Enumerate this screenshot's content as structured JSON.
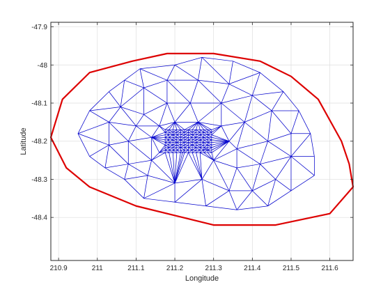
{
  "chart_data": {
    "type": "scatter",
    "title": "",
    "xlabel": "Longitude",
    "ylabel": "Latitude",
    "xlim": [
      210.88,
      211.66
    ],
    "ylim": [
      -48.513,
      -47.888
    ],
    "xticks": [
      210.9,
      211,
      211.1,
      211.2,
      211.3,
      211.4,
      211.5,
      211.6
    ],
    "xtick_labels": [
      "210.9",
      "211",
      "211.1",
      "211.2",
      "211.3",
      "211.4",
      "211.5",
      "211.6"
    ],
    "yticks": [
      -47.9,
      -48,
      -48.1,
      -48.2,
      -48.3,
      -48.4
    ],
    "ytick_labels": [
      "-47.9",
      "-48",
      "-48.1",
      "-48.2",
      "-48.3",
      "-48.4"
    ],
    "grid": true,
    "colors": {
      "boundary": "#dd0000",
      "mesh": "#0000cc",
      "axes": "#262626",
      "grid": "#dedede"
    },
    "series": [
      {
        "kind": "boundary",
        "color": "#dd0000",
        "closed": true,
        "points": [
          [
            210.88,
            -48.19
          ],
          [
            210.91,
            -48.09
          ],
          [
            210.98,
            -48.02
          ],
          [
            211.09,
            -47.99
          ],
          [
            211.18,
            -47.97
          ],
          [
            211.3,
            -47.97
          ],
          [
            211.42,
            -47.99
          ],
          [
            211.5,
            -48.03
          ],
          [
            211.57,
            -48.09
          ],
          [
            211.63,
            -48.2
          ],
          [
            211.65,
            -48.26
          ],
          [
            211.66,
            -48.32
          ],
          [
            211.6,
            -48.39
          ],
          [
            211.46,
            -48.42
          ],
          [
            211.3,
            -48.42
          ],
          [
            211.1,
            -48.37
          ],
          [
            210.98,
            -48.32
          ],
          [
            210.92,
            -48.27
          ]
        ]
      },
      {
        "kind": "mesh-outer",
        "color": "#0000cc",
        "points": [
          [
            210.95,
            -48.18
          ],
          [
            210.98,
            -48.12
          ],
          [
            211.03,
            -48.07
          ],
          [
            211.07,
            -48.04
          ],
          [
            211.11,
            -48.01
          ],
          [
            211.2,
            -48
          ],
          [
            211.27,
            -47.98
          ],
          [
            211.35,
            -47.99
          ],
          [
            211.42,
            -48.02
          ],
          [
            211.48,
            -48.07
          ],
          [
            211.52,
            -48.12
          ],
          [
            211.55,
            -48.18
          ],
          [
            211.56,
            -48.24
          ],
          [
            211.56,
            -48.29
          ],
          [
            211.5,
            -48.33
          ],
          [
            211.44,
            -48.37
          ],
          [
            211.36,
            -48.38
          ],
          [
            211.28,
            -48.37
          ],
          [
            211.2,
            -48.36
          ],
          [
            211.12,
            -48.35
          ],
          [
            211.07,
            -48.3
          ],
          [
            211.02,
            -48.27
          ],
          [
            210.98,
            -48.24
          ]
        ]
      },
      {
        "kind": "mesh-interior",
        "color": "#0000cc",
        "points": [
          [
            211.06,
            -48.11
          ],
          [
            211.12,
            -48.06
          ],
          [
            211.18,
            -48.04
          ],
          [
            211.26,
            -48.04
          ],
          [
            211.34,
            -48.05
          ],
          [
            211.4,
            -48.08
          ],
          [
            211.45,
            -48.12
          ],
          [
            211.5,
            -48.18
          ],
          [
            211.5,
            -48.24
          ],
          [
            211.46,
            -48.3
          ],
          [
            211.4,
            -48.33
          ],
          [
            211.34,
            -48.33
          ],
          [
            211.27,
            -48.3
          ],
          [
            211.2,
            -48.31
          ],
          [
            211.13,
            -48.29
          ],
          [
            211.08,
            -48.26
          ],
          [
            211.03,
            -48.21
          ],
          [
            211.03,
            -48.15
          ],
          [
            211.12,
            -48.13
          ],
          [
            211.18,
            -48.1
          ],
          [
            211.24,
            -48.1
          ],
          [
            211.32,
            -48.1
          ],
          [
            211.38,
            -48.15
          ],
          [
            211.44,
            -48.2
          ],
          [
            211.42,
            -48.26
          ],
          [
            211.36,
            -48.27
          ],
          [
            211.3,
            -48.25
          ],
          [
            211.14,
            -48.25
          ],
          [
            211.08,
            -48.2
          ],
          [
            211.14,
            -48.19
          ],
          [
            211.34,
            -48.2
          ],
          [
            211.26,
            -48.15
          ],
          [
            211.2,
            -48.15
          ],
          [
            211.16,
            -48.16
          ],
          [
            211.32,
            -48.16
          ],
          [
            211.36,
            -48.22
          ],
          [
            211.28,
            -48.22
          ],
          [
            211.22,
            -48.23
          ],
          [
            211.16,
            -48.23
          ],
          [
            211.1,
            -48.16
          ]
        ]
      },
      {
        "kind": "mesh-refined",
        "color": "#0000cc",
        "xrange": [
          211.175,
          211.295
        ],
        "yrange": [
          -48.23,
          -48.17
        ],
        "nx": 12,
        "ny": 9
      }
    ]
  }
}
